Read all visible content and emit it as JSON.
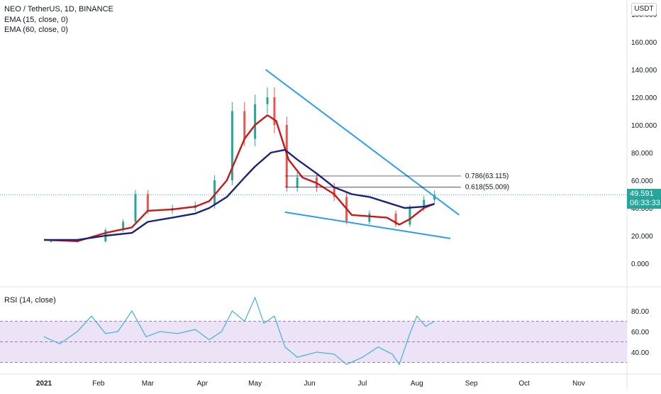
{
  "legend": {
    "title": "NEO / TetherUS, 1D, BINANCE",
    "ema15": "EMA (15, close, 0)",
    "ema60": "EMA (60, close, 0)",
    "rsi": "RSI (14, close)"
  },
  "currency_button": "USDT",
  "price_badge": {
    "price": "49.591",
    "countdown": "06:33:33"
  },
  "fib_labels": [
    "0.786(63.115)",
    "0.618(55.009)"
  ],
  "colors": {
    "ema15": "#c91818",
    "ema60": "#1a237e",
    "trendline": "#2a9df4",
    "candle_up": "#26a69a",
    "candle_down": "#ef5350",
    "rsi_line": "#4bb4d8",
    "rsi_band": "#ede3f7",
    "rsi_band_border": "#7e57c2"
  },
  "chart_data": [
    {
      "type": "line",
      "title": "NEO / TetherUS, 1D, BINANCE",
      "yaxis_ticks": [
        "180.000",
        "160.000",
        "140.000",
        "120.000",
        "100.000",
        "80.000",
        "60.000",
        "40.000",
        "20.000",
        "0.000"
      ],
      "ylim": [
        -10,
        185
      ],
      "xaxis_ticks": [
        "2021",
        "Feb",
        "Mar",
        "Apr",
        "May",
        "Jun",
        "Jul",
        "Aug",
        "Sep",
        "Oct",
        "Nov"
      ],
      "last_price": 49.591,
      "series": [
        {
          "name": "EMA (15, close, 0)",
          "x": [
            "2021-01-01",
            "2021-01-20",
            "2021-02-05",
            "2021-02-20",
            "2021-03-01",
            "2021-03-15",
            "2021-03-28",
            "2021-04-05",
            "2021-04-15",
            "2021-04-25",
            "2021-05-01",
            "2021-05-08",
            "2021-05-13",
            "2021-05-20",
            "2021-05-28",
            "2021-06-05",
            "2021-06-15",
            "2021-06-25",
            "2021-07-05",
            "2021-07-15",
            "2021-07-22",
            "2021-07-28",
            "2021-08-05",
            "2021-08-11"
          ],
          "values": [
            17,
            16,
            22,
            26,
            38,
            39,
            41,
            45,
            60,
            90,
            100,
            107,
            103,
            75,
            62,
            58,
            50,
            35,
            34,
            33,
            28,
            32,
            40,
            43
          ]
        },
        {
          "name": "EMA (60, close, 0)",
          "x": [
            "2021-01-01",
            "2021-01-20",
            "2021-02-05",
            "2021-02-20",
            "2021-03-01",
            "2021-03-15",
            "2021-03-28",
            "2021-04-05",
            "2021-04-15",
            "2021-04-25",
            "2021-05-01",
            "2021-05-10",
            "2021-05-18",
            "2021-05-25",
            "2021-06-05",
            "2021-06-15",
            "2021-06-25",
            "2021-07-05",
            "2021-07-15",
            "2021-07-25",
            "2021-08-05",
            "2021-08-11"
          ],
          "values": [
            17,
            17,
            20,
            22,
            30,
            33,
            36,
            40,
            48,
            62,
            70,
            80,
            82,
            75,
            65,
            55,
            50,
            48,
            44,
            40,
            41,
            43
          ]
        }
      ],
      "candles_close": [
        {
          "x": "2021-01-05",
          "close": 16
        },
        {
          "x": "2021-01-20",
          "close": 16
        },
        {
          "x": "2021-02-05",
          "close": 24
        },
        {
          "x": "2021-02-15",
          "close": 30
        },
        {
          "x": "2021-02-22",
          "close": 50
        },
        {
          "x": "2021-03-01",
          "close": 38
        },
        {
          "x": "2021-03-15",
          "close": 40
        },
        {
          "x": "2021-03-28",
          "close": 42
        },
        {
          "x": "2021-04-08",
          "close": 60
        },
        {
          "x": "2021-04-18",
          "close": 110
        },
        {
          "x": "2021-04-25",
          "close": 90
        },
        {
          "x": "2021-05-01",
          "close": 115
        },
        {
          "x": "2021-05-08",
          "close": 120
        },
        {
          "x": "2021-05-12",
          "close": 100
        },
        {
          "x": "2021-05-19",
          "close": 55
        },
        {
          "x": "2021-05-25",
          "close": 62
        },
        {
          "x": "2021-06-05",
          "close": 55
        },
        {
          "x": "2021-06-15",
          "close": 48
        },
        {
          "x": "2021-06-22",
          "close": 30
        },
        {
          "x": "2021-07-05",
          "close": 36
        },
        {
          "x": "2021-07-20",
          "close": 28
        },
        {
          "x": "2021-07-28",
          "close": 40
        },
        {
          "x": "2021-08-05",
          "close": 46
        },
        {
          "x": "2021-08-11",
          "close": 49.591
        }
      ],
      "fibonacci": [
        {
          "level": "0.786",
          "value": 63.115
        },
        {
          "level": "0.618",
          "value": 55.009
        }
      ],
      "trendlines": [
        {
          "name": "upper",
          "from": [
            "2021-05-07",
            140
          ],
          "to": [
            "2021-08-25",
            35
          ]
        },
        {
          "name": "lower",
          "from": [
            "2021-05-18",
            37
          ],
          "to": [
            "2021-08-20",
            18
          ]
        }
      ]
    },
    {
      "type": "line",
      "title": "RSI (14, close)",
      "yaxis_ticks": [
        "80.00",
        "60.00",
        "40.00"
      ],
      "ylim": [
        22,
        98
      ],
      "band": [
        30,
        70
      ],
      "midline": 50,
      "series": [
        {
          "name": "RSI (14, close)",
          "x": [
            "2021-01-01",
            "2021-01-10",
            "2021-01-20",
            "2021-01-28",
            "2021-02-05",
            "2021-02-12",
            "2021-02-20",
            "2021-02-28",
            "2021-03-08",
            "2021-03-18",
            "2021-03-28",
            "2021-04-05",
            "2021-04-12",
            "2021-04-18",
            "2021-04-25",
            "2021-05-01",
            "2021-05-06",
            "2021-05-12",
            "2021-05-18",
            "2021-05-25",
            "2021-06-05",
            "2021-06-15",
            "2021-06-22",
            "2021-07-01",
            "2021-07-10",
            "2021-07-18",
            "2021-07-22",
            "2021-07-28",
            "2021-08-01",
            "2021-08-06",
            "2021-08-11"
          ],
          "values": [
            55,
            48,
            60,
            75,
            58,
            60,
            80,
            55,
            60,
            58,
            62,
            52,
            60,
            80,
            70,
            93,
            68,
            75,
            45,
            35,
            40,
            38,
            28,
            35,
            45,
            38,
            28,
            58,
            75,
            65,
            70
          ]
        }
      ]
    }
  ]
}
